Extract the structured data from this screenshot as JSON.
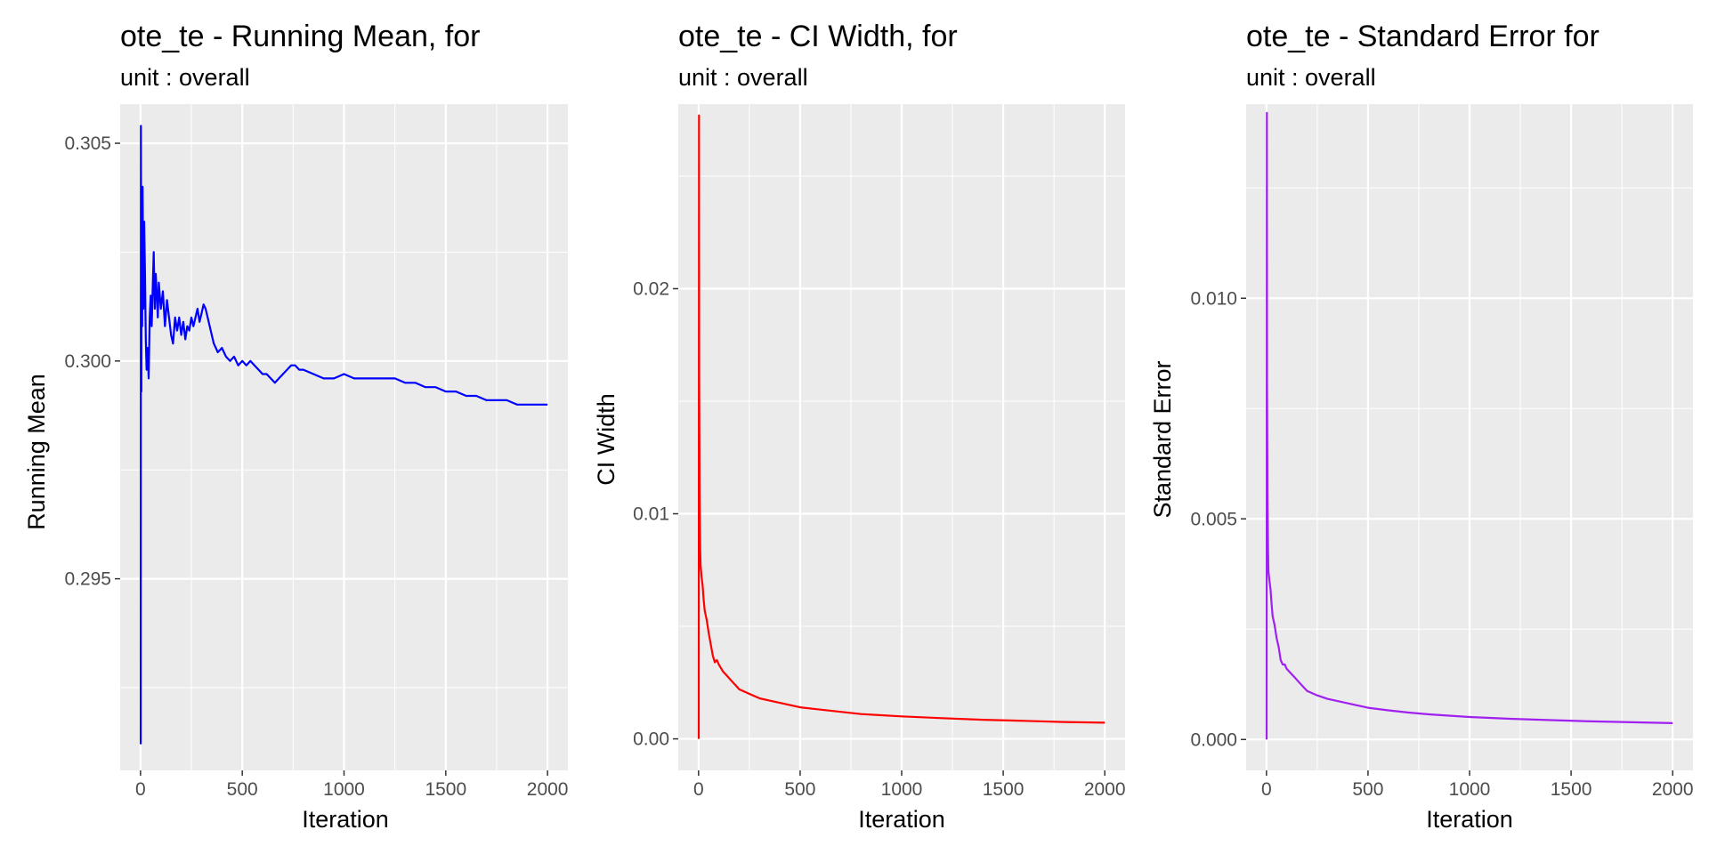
{
  "chart_data": [
    {
      "type": "line",
      "title": "ote_te - Running Mean, for",
      "subtitle": "unit : overall",
      "xlabel": "Iteration",
      "ylabel": "Running Mean",
      "xlim": [
        -100,
        2100
      ],
      "ylim": [
        0.2906,
        0.3059
      ],
      "x_ticks": [
        0,
        500,
        1000,
        1500,
        2000
      ],
      "y_ticks": [
        0.295,
        0.3,
        0.305
      ],
      "x_tick_labels": [
        "0",
        "500",
        "1000",
        "1500",
        "2000"
      ],
      "y_tick_labels": [
        "0.295",
        "0.300",
        "0.305"
      ],
      "grid": true,
      "color": "#0000ff",
      "series": [
        {
          "x": [
            1,
            2,
            4,
            6,
            8,
            10,
            14,
            18,
            22,
            26,
            30,
            35,
            40,
            45,
            50,
            55,
            60,
            65,
            70,
            75,
            80,
            85,
            90,
            100,
            110,
            120,
            130,
            140,
            150,
            160,
            170,
            180,
            190,
            200,
            210,
            220,
            230,
            240,
            250,
            260,
            270,
            280,
            290,
            300,
            310,
            320,
            330,
            340,
            350,
            360,
            370,
            380,
            400,
            420,
            440,
            460,
            480,
            500,
            520,
            540,
            560,
            580,
            600,
            620,
            640,
            660,
            680,
            700,
            720,
            740,
            760,
            780,
            800,
            850,
            900,
            950,
            1000,
            1050,
            1100,
            1150,
            1200,
            1250,
            1300,
            1350,
            1400,
            1450,
            1500,
            1550,
            1600,
            1650,
            1700,
            1750,
            1800,
            1850,
            1900,
            1950,
            2000
          ],
          "y": [
            0.2912,
            0.3054,
            0.2993,
            0.3035,
            0.3008,
            0.304,
            0.3012,
            0.3032,
            0.302,
            0.3005,
            0.2998,
            0.3003,
            0.2996,
            0.301,
            0.3015,
            0.3008,
            0.3017,
            0.3025,
            0.3012,
            0.302,
            0.3015,
            0.301,
            0.3018,
            0.3012,
            0.3016,
            0.3008,
            0.3014,
            0.301,
            0.3006,
            0.3004,
            0.301,
            0.3007,
            0.301,
            0.3006,
            0.3009,
            0.3005,
            0.3008,
            0.3007,
            0.301,
            0.3008,
            0.301,
            0.3012,
            0.3009,
            0.3011,
            0.3013,
            0.3012,
            0.301,
            0.3008,
            0.3006,
            0.3004,
            0.3003,
            0.3002,
            0.3003,
            0.3001,
            0.3,
            0.3001,
            0.2999,
            0.3,
            0.2999,
            0.3,
            0.2999,
            0.2998,
            0.2997,
            0.2997,
            0.2996,
            0.2995,
            0.2996,
            0.2997,
            0.2998,
            0.2999,
            0.2999,
            0.2998,
            0.2998,
            0.2997,
            0.2996,
            0.2996,
            0.2997,
            0.2996,
            0.2996,
            0.2996,
            0.2996,
            0.2996,
            0.2995,
            0.2995,
            0.2994,
            0.2994,
            0.2993,
            0.2993,
            0.2992,
            0.2992,
            0.2991,
            0.2991,
            0.2991,
            0.299,
            0.299,
            0.299,
            0.299
          ]
        }
      ]
    },
    {
      "type": "line",
      "title": "ote_te - CI Width, for",
      "subtitle": "unit : overall",
      "xlabel": "Iteration",
      "ylabel": "CI Width",
      "xlim": [
        -100,
        2100
      ],
      "ylim": [
        -0.0014,
        0.0282
      ],
      "x_ticks": [
        0,
        500,
        1000,
        1500,
        2000
      ],
      "y_ticks": [
        0.0,
        0.01,
        0.02
      ],
      "x_tick_labels": [
        "0",
        "500",
        "1000",
        "1500",
        "2000"
      ],
      "y_tick_labels": [
        "0.00",
        "0.01",
        "0.02"
      ],
      "grid": true,
      "color": "#ff0000",
      "series": [
        {
          "x": [
            1,
            2,
            3,
            5,
            8,
            10,
            15,
            20,
            25,
            30,
            40,
            50,
            60,
            70,
            80,
            90,
            100,
            120,
            140,
            160,
            180,
            200,
            250,
            300,
            350,
            400,
            450,
            500,
            600,
            700,
            800,
            900,
            1000,
            1200,
            1400,
            1600,
            1800,
            2000
          ],
          "y": [
            0.0,
            0.0277,
            0.016,
            0.011,
            0.0085,
            0.0077,
            0.0072,
            0.0068,
            0.0062,
            0.0057,
            0.0053,
            0.0047,
            0.0042,
            0.0037,
            0.0034,
            0.0035,
            0.0033,
            0.003,
            0.0028,
            0.0026,
            0.0024,
            0.0022,
            0.002,
            0.0018,
            0.0017,
            0.0016,
            0.0015,
            0.0014,
            0.0013,
            0.0012,
            0.0011,
            0.00105,
            0.001,
            0.00092,
            0.00085,
            0.0008,
            0.00075,
            0.00072
          ]
        }
      ]
    },
    {
      "type": "line",
      "title": "ote_te - Standard Error for",
      "subtitle": "unit : overall",
      "xlabel": "Iteration",
      "ylabel": "Standard Error",
      "xlim": [
        -100,
        2100
      ],
      "ylim": [
        -0.0007,
        0.0144
      ],
      "x_ticks": [
        0,
        500,
        1000,
        1500,
        2000
      ],
      "y_ticks": [
        0.0,
        0.005,
        0.01
      ],
      "x_tick_labels": [
        "0",
        "500",
        "1000",
        "1500",
        "2000"
      ],
      "y_tick_labels": [
        "0.000",
        "0.005",
        "0.010"
      ],
      "grid": true,
      "color": "#a020f0",
      "series": [
        {
          "x": [
            1,
            2,
            3,
            5,
            8,
            10,
            15,
            20,
            25,
            30,
            40,
            50,
            60,
            70,
            80,
            90,
            100,
            120,
            140,
            160,
            180,
            200,
            250,
            300,
            350,
            400,
            450,
            500,
            600,
            700,
            800,
            900,
            1000,
            1200,
            1400,
            1600,
            1800,
            2000
          ],
          "y": [
            0.0,
            0.0142,
            0.008,
            0.0056,
            0.0043,
            0.0038,
            0.0036,
            0.0034,
            0.0031,
            0.0028,
            0.0026,
            0.0023,
            0.0021,
            0.0018,
            0.0017,
            0.0017,
            0.0016,
            0.0015,
            0.0014,
            0.0013,
            0.0012,
            0.0011,
            0.001,
            0.00092,
            0.00087,
            0.00082,
            0.00077,
            0.00072,
            0.00066,
            0.00061,
            0.00057,
            0.00054,
            0.00051,
            0.00047,
            0.00044,
            0.00041,
            0.00039,
            0.00037
          ]
        }
      ]
    }
  ]
}
